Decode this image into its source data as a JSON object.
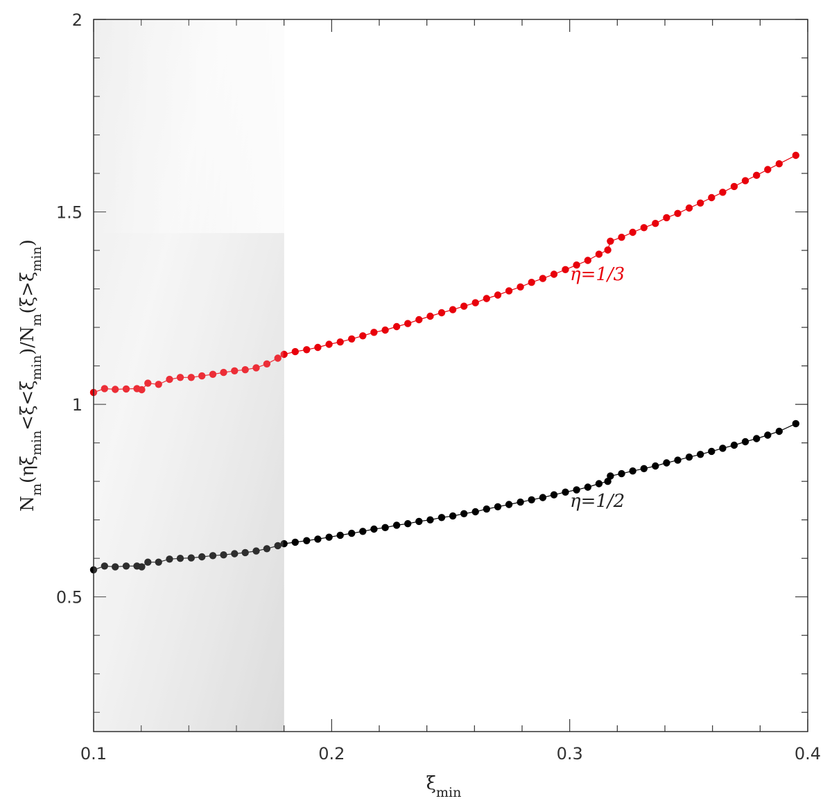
{
  "chart_data": {
    "type": "scatter",
    "xlabel": "ξ_min",
    "ylabel": "N_m(ηξ_min<ξ<ξ_min)/N_m(ξ>ξ_min)",
    "xlim": [
      0.1,
      0.4
    ],
    "ylim": [
      0.15,
      2.0
    ],
    "x_ticks": [
      "0.1",
      "0.2",
      "0.3",
      "0.4"
    ],
    "y_ticks": [
      "0.5",
      "1",
      "1.5",
      "2"
    ],
    "shaded_region": {
      "x_range": [
        0.1,
        0.18
      ],
      "style": "grey gradient"
    },
    "grid": false,
    "series": [
      {
        "name": "η=1/3",
        "color": "#e8000b",
        "x": [
          0.1,
          0.1046,
          0.1091,
          0.1137,
          0.1182,
          0.1202,
          0.1228,
          0.1273,
          0.1319,
          0.1364,
          0.141,
          0.1455,
          0.1501,
          0.1546,
          0.1592,
          0.1637,
          0.1683,
          0.1728,
          0.1774,
          0.18,
          0.1847,
          0.1895,
          0.1942,
          0.1989,
          0.2036,
          0.2084,
          0.2131,
          0.2178,
          0.2225,
          0.2273,
          0.232,
          0.2367,
          0.2414,
          0.2462,
          0.2509,
          0.2556,
          0.2604,
          0.2651,
          0.2698,
          0.2745,
          0.2793,
          0.284,
          0.2887,
          0.2934,
          0.2982,
          0.3029,
          0.3076,
          0.3123,
          0.316,
          0.3171,
          0.3218,
          0.3265,
          0.3312,
          0.336,
          0.3407,
          0.3454,
          0.3502,
          0.3549,
          0.3596,
          0.3643,
          0.3691,
          0.3738,
          0.3785,
          0.3832,
          0.388,
          0.395
        ],
        "y": [
          1.031,
          1.041,
          1.039,
          1.04,
          1.041,
          1.038,
          1.055,
          1.052,
          1.065,
          1.07,
          1.07,
          1.074,
          1.078,
          1.083,
          1.087,
          1.09,
          1.095,
          1.105,
          1.12,
          1.13,
          1.137,
          1.142,
          1.148,
          1.156,
          1.162,
          1.17,
          1.178,
          1.187,
          1.193,
          1.202,
          1.21,
          1.22,
          1.229,
          1.238,
          1.246,
          1.255,
          1.264,
          1.275,
          1.284,
          1.295,
          1.305,
          1.317,
          1.327,
          1.338,
          1.35,
          1.362,
          1.374,
          1.39,
          1.401,
          1.424,
          1.434,
          1.447,
          1.459,
          1.47,
          1.485,
          1.496,
          1.51,
          1.523,
          1.537,
          1.551,
          1.566,
          1.581,
          1.595,
          1.61,
          1.625,
          1.647
        ]
      },
      {
        "name": "η=1/2",
        "color": "#000000",
        "x": [
          0.1,
          0.1046,
          0.1091,
          0.1137,
          0.1182,
          0.1202,
          0.1228,
          0.1273,
          0.1319,
          0.1364,
          0.141,
          0.1455,
          0.1501,
          0.1546,
          0.1592,
          0.1637,
          0.1683,
          0.1728,
          0.1774,
          0.18,
          0.1847,
          0.1895,
          0.1942,
          0.1989,
          0.2036,
          0.2084,
          0.2131,
          0.2178,
          0.2225,
          0.2273,
          0.232,
          0.2367,
          0.2414,
          0.2462,
          0.2509,
          0.2556,
          0.2604,
          0.2651,
          0.2698,
          0.2745,
          0.2793,
          0.284,
          0.2887,
          0.2934,
          0.2982,
          0.3029,
          0.3076,
          0.3123,
          0.316,
          0.3171,
          0.3218,
          0.3265,
          0.3312,
          0.336,
          0.3407,
          0.3454,
          0.3502,
          0.3549,
          0.3596,
          0.3643,
          0.3691,
          0.3738,
          0.3785,
          0.3832,
          0.388,
          0.395
        ],
        "y": [
          0.57,
          0.58,
          0.578,
          0.58,
          0.58,
          0.578,
          0.59,
          0.59,
          0.598,
          0.6,
          0.601,
          0.604,
          0.607,
          0.609,
          0.612,
          0.615,
          0.619,
          0.625,
          0.633,
          0.638,
          0.642,
          0.646,
          0.65,
          0.655,
          0.66,
          0.665,
          0.67,
          0.676,
          0.68,
          0.686,
          0.69,
          0.696,
          0.7,
          0.706,
          0.71,
          0.716,
          0.721,
          0.728,
          0.734,
          0.74,
          0.746,
          0.752,
          0.758,
          0.765,
          0.772,
          0.778,
          0.785,
          0.794,
          0.8,
          0.814,
          0.82,
          0.827,
          0.833,
          0.84,
          0.848,
          0.855,
          0.863,
          0.87,
          0.878,
          0.886,
          0.894,
          0.903,
          0.911,
          0.92,
          0.93,
          0.95
        ]
      }
    ]
  }
}
